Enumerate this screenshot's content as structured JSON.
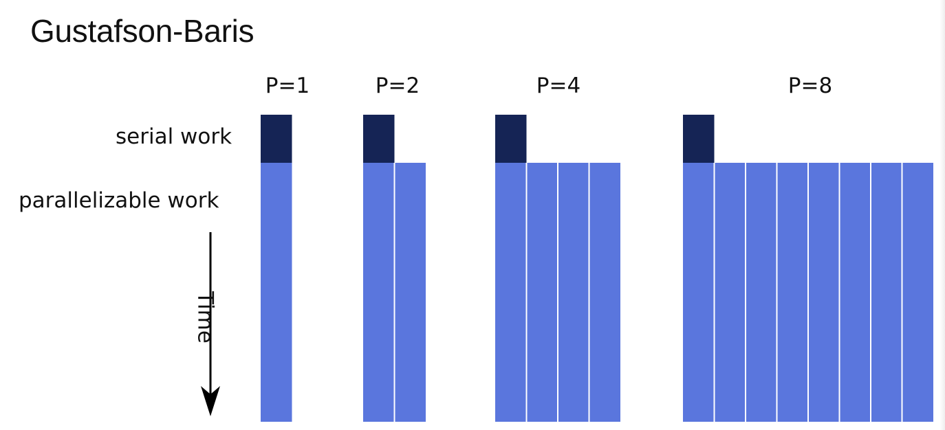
{
  "title": "Gustafson-Baris",
  "labels": {
    "serial": "serial work",
    "parallel": "parallelizable work",
    "time": "Time"
  },
  "colors": {
    "serial": "#152455",
    "parallel": "#5a76dd",
    "divider": "#ffffff"
  },
  "groups": [
    {
      "label": "P=1",
      "processors": 1
    },
    {
      "label": "P=2",
      "processors": 2
    },
    {
      "label": "P=4",
      "processors": 4
    },
    {
      "label": "P=8",
      "processors": 8
    }
  ]
}
